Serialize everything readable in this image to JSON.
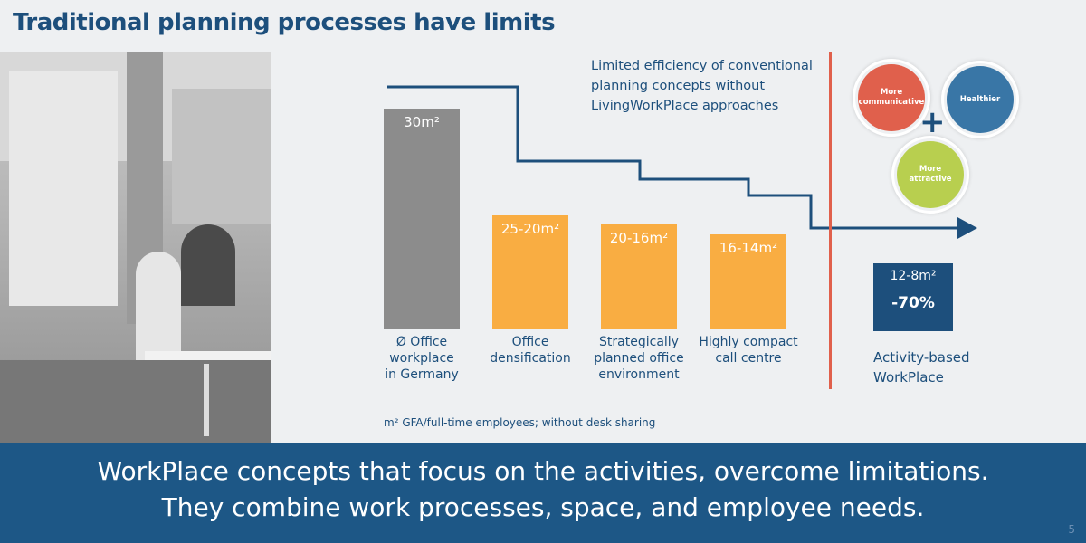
{
  "title": "Traditional planning processes have limits",
  "note": [
    "Limited efficiency of conventional",
    "planning concepts without",
    "LivingWorkPlace approaches"
  ],
  "chart_data": {
    "type": "bar",
    "categories": [
      "Ø Office workplace in Germany",
      "Office densification",
      "Strategically planned office environment",
      "Highly compact call centre"
    ],
    "values": [
      30,
      25,
      20,
      16
    ],
    "value_labels": [
      "30m²",
      "25-20m²",
      "20-16m²",
      "16-14m²"
    ],
    "colors": [
      "#8c8c8c",
      "#f9ad42",
      "#f9ad42",
      "#f9ad42"
    ]
  },
  "categories_lines": [
    [
      "Ø Office",
      "workplace",
      "in Germany"
    ],
    [
      "Office",
      "densification"
    ],
    [
      "Strategically",
      "planned office",
      "environment"
    ],
    [
      "Highly compact",
      "call centre"
    ]
  ],
  "footnote": "m² GFA/full-time employees; without desk sharing",
  "circles": {
    "c1": [
      "More",
      "communicative"
    ],
    "c2": "Healthier",
    "c3": [
      "More",
      "attractive"
    ],
    "plus": "+"
  },
  "abw": {
    "value": "12-8m²",
    "reduction": "-70%",
    "label": [
      "Activity-based",
      "WorkPlace"
    ]
  },
  "banner": {
    "line1": "WorkPlace concepts that focus on the activities, overcome limitations.",
    "line2": "They combine work processes, space, and employee needs."
  },
  "page_number": "5",
  "colors": {
    "primary": "#1d4f7c",
    "accent": "#e0604c",
    "orange": "#f9ad42",
    "gray": "#8c8c8c"
  }
}
